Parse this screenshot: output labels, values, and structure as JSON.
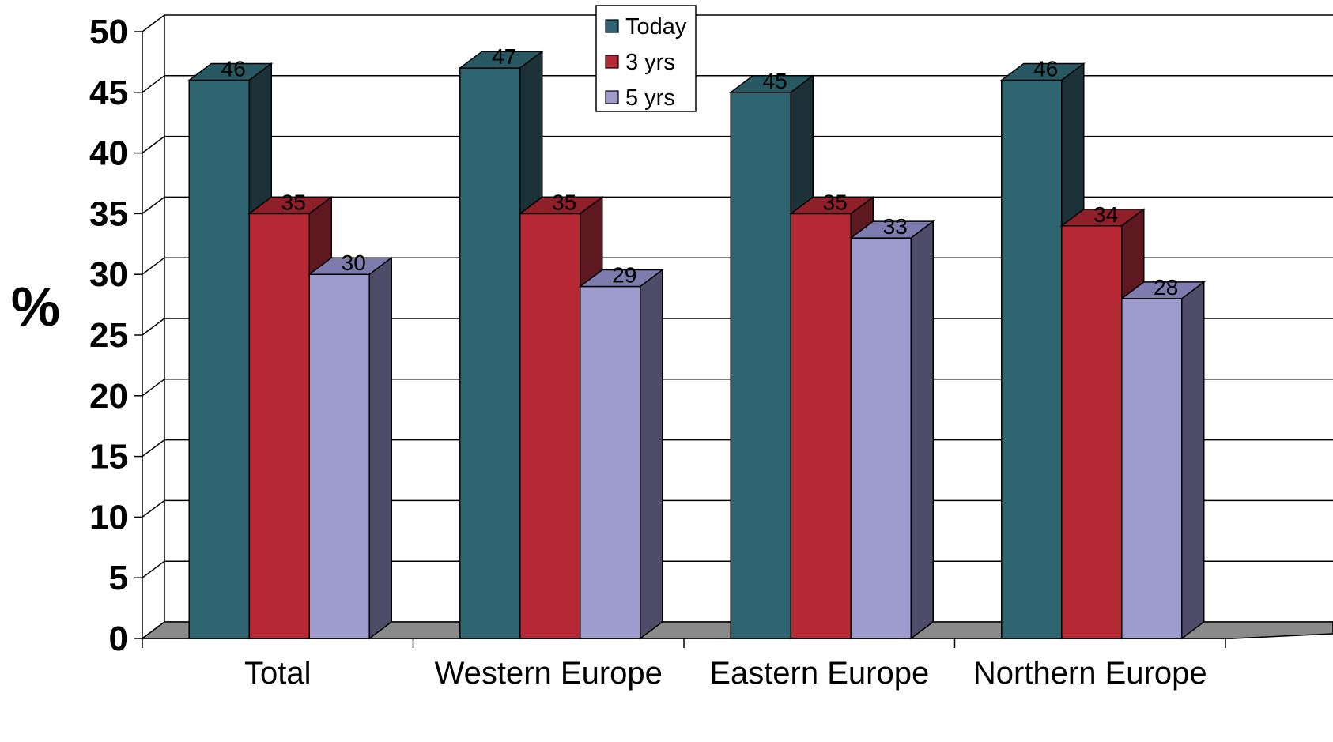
{
  "chart_data": {
    "type": "bar",
    "three_d": true,
    "title": "",
    "xlabel": "",
    "ylabel": "%",
    "ylim": [
      0,
      50
    ],
    "yticks": [
      "0",
      "5",
      "10",
      "15",
      "20",
      "25",
      "30",
      "35",
      "40",
      "45",
      "50"
    ],
    "categories": [
      "Total",
      "Western Europe",
      "Eastern Europe",
      "Northern Europe"
    ],
    "series": [
      {
        "name": "Today",
        "values": [
          46,
          47,
          45,
          46
        ],
        "color": "#2e6470",
        "top_color": "#285862",
        "side_color": "#1c3238"
      },
      {
        "name": "3 yrs",
        "values": [
          35,
          35,
          35,
          34
        ],
        "color": "#b72835",
        "top_color": "#8f2029",
        "side_color": "#5e1820"
      },
      {
        "name": "5 yrs",
        "values": [
          30,
          29,
          33,
          28
        ],
        "color": "#9e9ccc",
        "top_color": "#7e7cae",
        "side_color": "#4e4c68"
      }
    ],
    "grid": true,
    "legend_position": "top-center",
    "floor_color": "#8a8a8a"
  }
}
